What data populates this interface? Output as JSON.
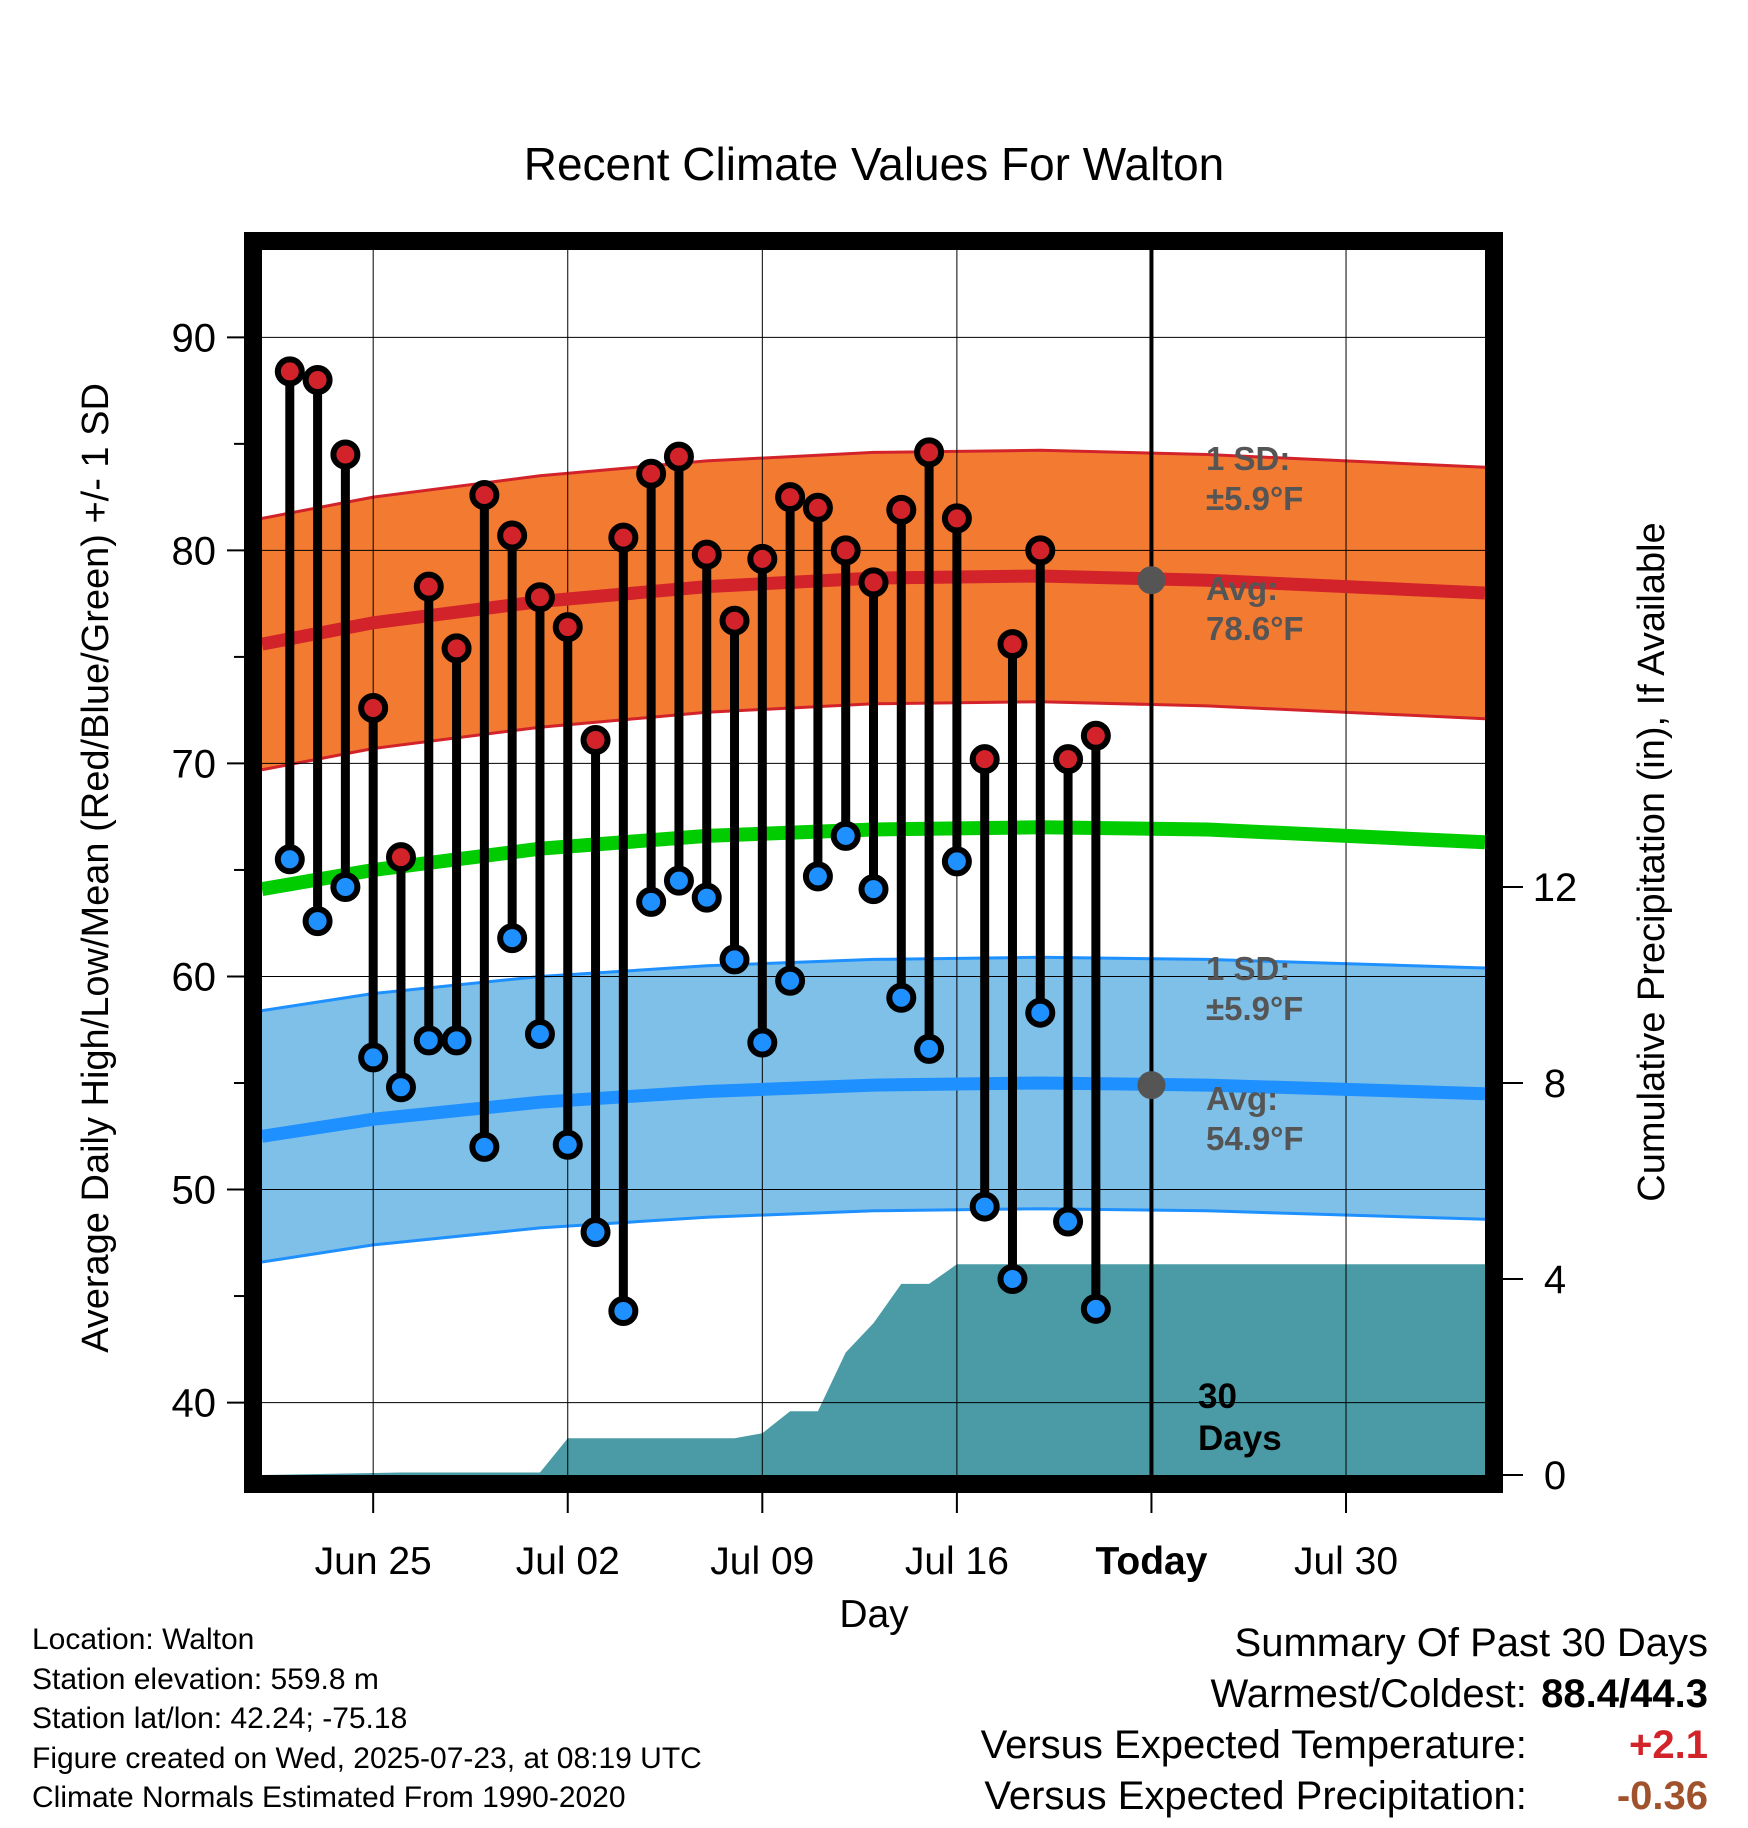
{
  "chart_data": {
    "type": "line",
    "title": "Recent Climate Values For Walton",
    "xlabel": "Day",
    "ylabel": "Average Daily High/Low/Mean (Red/Blue/Green) +/- 1 SD",
    "y2label": "Cumulative Precipitation (in), If Available",
    "x_tick_labels": [
      "Jun 25",
      "Jul 02",
      "Jul 09",
      "Jul 16",
      "Today",
      "Jul 30"
    ],
    "x_range": [
      "2025-06-21",
      "2025-08-04"
    ],
    "y_ticks": [
      40,
      50,
      60,
      70,
      80,
      90
    ],
    "ylim": [
      36.6,
      94.1
    ],
    "y2_ticks": [
      0,
      4,
      8,
      12
    ],
    "y2lim": [
      0,
      25
    ],
    "grid": true,
    "dates": [
      "2025-06-22",
      "2025-06-23",
      "2025-06-24",
      "2025-06-25",
      "2025-06-26",
      "2025-06-27",
      "2025-06-28",
      "2025-06-29",
      "2025-06-30",
      "2025-07-01",
      "2025-07-02",
      "2025-07-03",
      "2025-07-04",
      "2025-07-05",
      "2025-07-06",
      "2025-07-07",
      "2025-07-08",
      "2025-07-09",
      "2025-07-10",
      "2025-07-11",
      "2025-07-12",
      "2025-07-13",
      "2025-07-14",
      "2025-07-15",
      "2025-07-16",
      "2025-07-17",
      "2025-07-18",
      "2025-07-19",
      "2025-07-20",
      "2025-07-21",
      "2025-07-22"
    ],
    "observed_high": [
      88.4,
      88.0,
      84.5,
      72.6,
      65.6,
      78.3,
      75.4,
      82.6,
      80.7,
      77.8,
      76.4,
      71.1,
      80.6,
      83.6,
      84.4,
      79.8,
      76.7,
      79.6,
      82.5,
      82.0,
      80.0,
      78.5,
      81.9,
      84.6,
      81.5,
      70.2,
      75.6,
      80.0,
      70.2,
      71.3,
      null
    ],
    "observed_low": [
      65.5,
      62.6,
      64.2,
      56.2,
      54.8,
      57.0,
      57.0,
      52.0,
      61.8,
      57.3,
      52.1,
      48.0,
      44.3,
      63.5,
      64.5,
      63.7,
      60.8,
      56.9,
      59.8,
      64.7,
      66.6,
      64.1,
      59.0,
      56.6,
      65.4,
      49.2,
      45.8,
      58.3,
      48.5,
      44.4,
      null
    ],
    "normal_series": [
      {
        "name": "high",
        "dates": [
          "2025-06-21",
          "2025-06-25",
          "2025-07-01",
          "2025-07-07",
          "2025-07-13",
          "2025-07-19",
          "2025-07-25",
          "2025-08-04"
        ],
        "values": [
          75.6,
          76.6,
          77.6,
          78.3,
          78.7,
          78.8,
          78.6,
          78.0
        ],
        "sd": 5.9
      },
      {
        "name": "mean",
        "dates": [
          "2025-06-21",
          "2025-06-25",
          "2025-07-01",
          "2025-07-07",
          "2025-07-13",
          "2025-07-19",
          "2025-07-25",
          "2025-08-04"
        ],
        "values": [
          64.1,
          65.0,
          66.0,
          66.6,
          66.9,
          67.0,
          66.9,
          66.3
        ]
      },
      {
        "name": "low",
        "dates": [
          "2025-06-21",
          "2025-06-25",
          "2025-07-01",
          "2025-07-07",
          "2025-07-13",
          "2025-07-19",
          "2025-07-25",
          "2025-08-04"
        ],
        "values": [
          52.5,
          53.3,
          54.1,
          54.6,
          54.9,
          55.0,
          54.9,
          54.5
        ],
        "sd": 5.9
      }
    ],
    "precipitation": {
      "dates": [
        "2025-06-21",
        "2025-06-26",
        "2025-07-01",
        "2025-07-02",
        "2025-07-08",
        "2025-07-09",
        "2025-07-10",
        "2025-07-11",
        "2025-07-12",
        "2025-07-13",
        "2025-07-14",
        "2025-07-15",
        "2025-07-16",
        "2025-07-22",
        "2025-08-04"
      ],
      "values": [
        0.0,
        0.05,
        0.05,
        0.75,
        0.75,
        0.85,
        1.3,
        1.3,
        2.5,
        3.1,
        3.9,
        3.9,
        4.3,
        4.3,
        4.3
      ]
    },
    "annotations": {
      "high_sd": "1 SD:\n±5.9°F",
      "high_avg": "Avg:\n78.6°F",
      "low_sd": "1 SD:\n±5.9°F",
      "low_avg": "Avg:\n54.9°F",
      "days_label": "30\nDays"
    },
    "colors": {
      "high_band": "#f37b31",
      "high_line": "#d2232a",
      "mean_line": "#00cc00",
      "low_band": "#7fc0e8",
      "low_line": "#1e90ff",
      "precip": "#4a9ba6",
      "high_marker": "#d2232a",
      "low_marker": "#1e90ff",
      "annotation_text": "#555555"
    }
  },
  "info": {
    "location": "Location: Walton",
    "elevation": "Station elevation: 559.8 m",
    "latlon": "Station lat/lon: 42.24; -75.18",
    "created": "Figure created on Wed, 2025-07-23, at 08:19 UTC",
    "normals": "Climate Normals Estimated From 1990-2020"
  },
  "summary": {
    "title": "Summary Of Past 30 Days",
    "warmest_coldest_label": "Warmest/Coldest:",
    "warmest_coldest_value": "88.4/44.3",
    "temp_label": "Versus Expected Temperature:",
    "temp_value": "+2.1",
    "temp_color": "#d2232a",
    "precip_label": "Versus Expected Precipitation:",
    "precip_value": "-0.36",
    "precip_color": "#a0522d"
  }
}
